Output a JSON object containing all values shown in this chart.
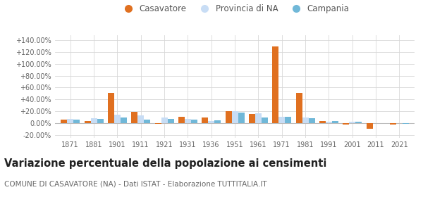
{
  "years": [
    1871,
    1881,
    1901,
    1911,
    1921,
    1931,
    1936,
    1951,
    1961,
    1971,
    1981,
    1991,
    2001,
    2011,
    2021
  ],
  "casavatore": [
    6.0,
    3.5,
    51.0,
    19.0,
    -1.0,
    11.0,
    9.0,
    20.0,
    15.0,
    130.0,
    51.0,
    4.0,
    -2.0,
    -10.0,
    -2.0
  ],
  "provincia_na": [
    6.5,
    8.0,
    14.0,
    13.0,
    9.0,
    7.0,
    4.0,
    20.0,
    17.0,
    11.0,
    9.0,
    2.5,
    2.5,
    0.5,
    0.0
  ],
  "campania": [
    5.5,
    6.5,
    10.0,
    6.0,
    7.0,
    5.5,
    4.5,
    18.0,
    10.0,
    11.0,
    8.5,
    4.0,
    2.5,
    -0.5,
    -1.5
  ],
  "color_casavatore": "#e07020",
  "color_provincia": "#c8ddf5",
  "color_campania": "#70b8d8",
  "title": "Variazione percentuale della popolazione ai censimenti",
  "subtitle": "COMUNE DI CASAVATORE (NA) - Dati ISTAT - Elaborazione TUTTITALIA.IT",
  "legend_labels": [
    "Casavatore",
    "Provincia di NA",
    "Campania"
  ],
  "ylim": [
    -25,
    148
  ],
  "yticks": [
    -20,
    0,
    20,
    40,
    60,
    80,
    100,
    120,
    140
  ],
  "bar_width": 0.27,
  "bg_color": "#ffffff",
  "grid_color": "#d8d8d8",
  "title_fontsize": 10.5,
  "subtitle_fontsize": 7.5,
  "tick_fontsize": 7,
  "legend_fontsize": 8.5
}
